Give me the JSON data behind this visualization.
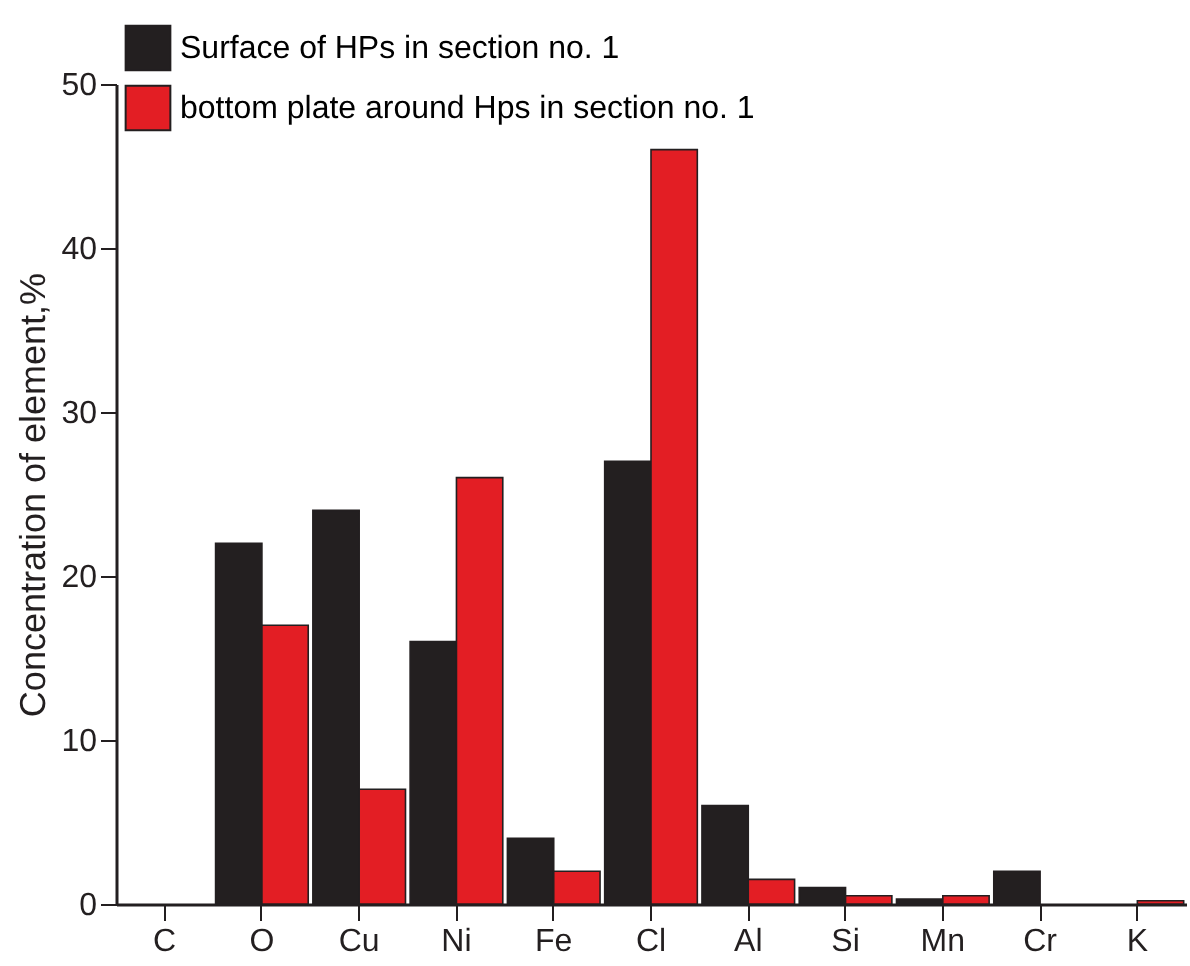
{
  "chart_data": {
    "type": "bar",
    "ylabel": "Concentration of element,%",
    "categories": [
      "C",
      "O",
      "Cu",
      "Ni",
      "Fe",
      "Cl",
      "Al",
      "Si",
      "Mn",
      "Cr",
      "K"
    ],
    "series": [
      {
        "name": "Surface of HPs in section no. 1",
        "color": "#231f20",
        "values": [
          null,
          22,
          24,
          16,
          4,
          27,
          6,
          1,
          0.3,
          2,
          null
        ]
      },
      {
        "name": "bottom plate around Hps in section no. 1",
        "color": "#e31e24",
        "values": [
          null,
          17,
          7,
          26,
          2,
          46,
          1.5,
          0.5,
          0.5,
          null,
          0.2
        ]
      }
    ],
    "ylim": [
      0,
      50
    ],
    "yticks": [
      0,
      10,
      20,
      30,
      40,
      50
    ],
    "grid": false,
    "legend": "top left"
  }
}
